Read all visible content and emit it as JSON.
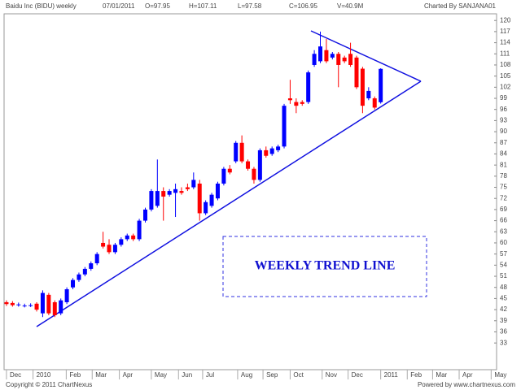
{
  "chart_data": {
    "type": "candlestick",
    "title": "Baidu Inc (BIDU) weekly",
    "header": [
      "07/01/2011",
      "O=97.95",
      "H=107.11",
      "L=97.58",
      "C=106.95",
      "V=40.9M"
    ],
    "credit": "Charted By SANJANA01",
    "copyright": "Copyright © 2011 ChartNexus",
    "powered": "Powered by www.chartnexus.com",
    "annotation": "WEEKLY TREND LINE",
    "up_color": "#0000ff",
    "down_color": "#ff0000",
    "x": [
      0,
      1,
      2,
      3,
      4,
      5,
      6,
      7,
      8,
      9,
      10,
      11,
      12,
      13,
      14,
      15,
      16,
      17,
      18,
      19,
      20,
      21,
      22,
      23,
      24,
      25,
      26,
      27,
      28,
      29,
      30,
      31,
      32,
      33,
      34,
      35,
      36,
      37,
      38,
      39,
      40,
      41,
      42,
      43,
      44,
      45,
      46,
      47,
      48,
      49,
      50,
      51,
      52,
      53,
      54,
      55,
      56,
      57,
      58,
      59,
      60,
      61,
      62
    ],
    "open": [
      44,
      43.8,
      43.3,
      43,
      43,
      43.6,
      41,
      46,
      44,
      41,
      44,
      48,
      50,
      51.5,
      53,
      54.5,
      60,
      59.5,
      57.5,
      59.5,
      61,
      62,
      61,
      66,
      69,
      70,
      74,
      73,
      73.5,
      74,
      75,
      75,
      76,
      68,
      70,
      72,
      76,
      80,
      82,
      87,
      82,
      80,
      77,
      85,
      84,
      85,
      86,
      99,
      98,
      98,
      98,
      108,
      109,
      112,
      110,
      111,
      110,
      111,
      110,
      107,
      99,
      99,
      97.95
    ],
    "high": [
      44.5,
      44.3,
      43.9,
      43.6,
      43.7,
      44,
      47.2,
      46.5,
      44.5,
      45,
      48,
      50.5,
      52,
      53.5,
      55,
      57.5,
      63,
      61,
      60,
      61.5,
      62.5,
      62.5,
      66.5,
      69.5,
      74.5,
      82.5,
      75,
      74.5,
      76,
      75,
      76,
      79,
      77,
      71.5,
      73.5,
      76.5,
      80.5,
      81,
      87.5,
      89,
      82.5,
      80.5,
      85.5,
      86,
      86,
      86.5,
      97.5,
      104,
      99,
      98.5,
      106.5,
      112,
      117,
      115,
      111.5,
      111.5,
      110.5,
      114,
      110.5,
      107.5,
      102,
      99.5,
      107.11
    ],
    "low": [
      43,
      42.8,
      42.8,
      42.6,
      42.7,
      41.5,
      40,
      40.5,
      40,
      40.5,
      43.5,
      47.5,
      49.5,
      51,
      52.5,
      54,
      58.5,
      57,
      57,
      59,
      60.5,
      60.5,
      60.5,
      65.5,
      68.5,
      69.5,
      66,
      72.5,
      67,
      73,
      74,
      74.5,
      66,
      67.5,
      69.5,
      71.5,
      75.5,
      78.5,
      81.5,
      81.5,
      79.5,
      76,
      76.5,
      83,
      83.5,
      84.5,
      85.5,
      97.5,
      95,
      97,
      97.5,
      107.5,
      108.5,
      108.5,
      109.5,
      102,
      108.5,
      107.5,
      101.5,
      95,
      98.5,
      96,
      97.58
    ],
    "close": [
      43.5,
      43.2,
      43.4,
      43.1,
      43.2,
      42,
      46.5,
      41,
      40.5,
      44.5,
      47.5,
      50,
      51.5,
      53,
      54.5,
      57,
      59,
      57.5,
      59.5,
      61,
      62,
      61,
      66,
      69,
      74,
      74,
      72.5,
      74,
      74.5,
      73.5,
      74.5,
      77,
      68,
      71,
      73,
      76,
      80,
      79,
      87,
      82,
      80,
      77,
      85,
      83.5,
      85.5,
      86,
      97,
      98.5,
      97,
      97.5,
      106,
      111,
      113,
      109,
      111,
      108,
      109,
      108,
      102,
      97,
      101,
      96.5,
      106.95
    ],
    "xlim": [
      -0.4,
      81.2
    ],
    "xticks": [
      {
        "value": 0,
        "label": "Dec"
      },
      {
        "value": 4.4,
        "label": "2010"
      },
      {
        "value": 9.9,
        "label": "Feb"
      },
      {
        "value": 14.2,
        "label": "Mar"
      },
      {
        "value": 18.7,
        "label": "Apr"
      },
      {
        "value": 24,
        "label": "May"
      },
      {
        "value": 28.5,
        "label": "Jun"
      },
      {
        "value": 32.5,
        "label": "Jul"
      },
      {
        "value": 38.3,
        "label": "Aug"
      },
      {
        "value": 42.5,
        "label": "Sep"
      },
      {
        "value": 47,
        "label": "Oct"
      },
      {
        "value": 52.3,
        "label": "Nov"
      },
      {
        "value": 56.6,
        "label": "Dec"
      },
      {
        "value": 62,
        "label": "2011"
      },
      {
        "value": 66.4,
        "label": "Feb"
      },
      {
        "value": 70.6,
        "label": "Mar"
      },
      {
        "value": 75,
        "label": "Apr"
      },
      {
        "value": 80.3,
        "label": "May"
      }
    ],
    "ylim": [
      25.8,
      121.8
    ],
    "yticks": [
      120,
      117,
      114,
      111,
      108,
      105,
      102,
      99,
      96,
      93,
      90,
      87,
      84,
      81,
      78,
      75,
      72,
      69,
      66,
      63,
      60,
      57,
      54,
      51,
      48,
      45,
      42,
      39,
      36,
      33
    ],
    "grid": false
  }
}
